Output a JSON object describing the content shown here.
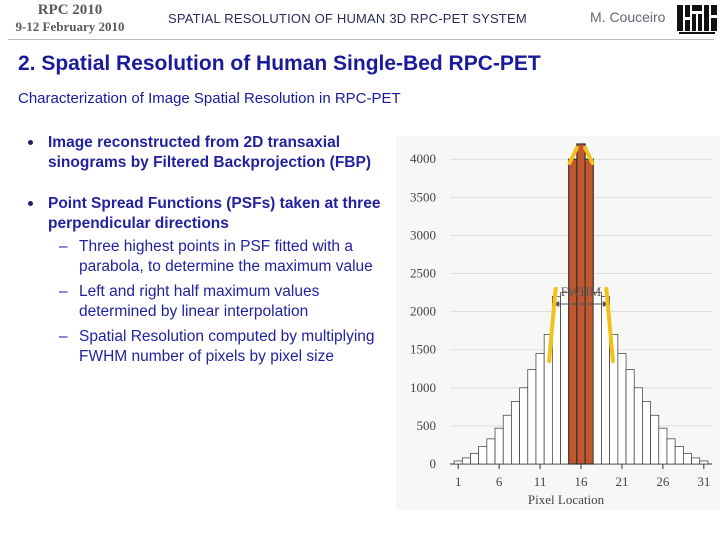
{
  "header": {
    "conference": "RPC 2010",
    "dates": "9-12 February 2010",
    "presentation_title": "SPATIAL RESOLUTION OF HUMAN 3D RPC-PET SYSTEM",
    "author": "M. Couceiro",
    "logo_icon": "institution-logo-icon"
  },
  "slide": {
    "title": "2. Spatial Resolution of Human Single-Bed RPC-PET",
    "subtitle": "Characterization of Image Spatial Resolution in RPC-PET",
    "bullets": [
      {
        "text": "Image reconstructed from 2D transaxial sinograms by Filtered Backprojection (FBP)",
        "subs": []
      },
      {
        "text": "Point Spread Functions (PSFs) taken at three perpendicular directions",
        "subs": [
          "Three highest points in PSF fitted with a parabola, to determine the maximum value",
          "Left and right half maximum values determined by linear interpolation",
          "Spatial Resolution computed by multiplying FWHM number of pixels by pixel size"
        ]
      }
    ]
  },
  "chart_data": {
    "type": "bar",
    "xlabel": "Pixel Location",
    "ylabel": "",
    "annotation": "FWHM",
    "x_ticks": [
      "1",
      "6",
      "11",
      "16",
      "21",
      "26",
      "31"
    ],
    "y_ticks": [
      "0",
      "500",
      "1000",
      "1500",
      "2000",
      "2500",
      "3000",
      "3500",
      "4000"
    ],
    "xlim": [
      0,
      32
    ],
    "ylim": [
      0,
      4200
    ],
    "categories": [
      1,
      2,
      3,
      4,
      5,
      6,
      7,
      8,
      9,
      10,
      11,
      12,
      13,
      14,
      15,
      16,
      17,
      18,
      19,
      20,
      21,
      22,
      23,
      24,
      25,
      26,
      27,
      28,
      29,
      30,
      31
    ],
    "values": [
      40,
      80,
      140,
      230,
      330,
      470,
      640,
      820,
      1000,
      1240,
      1450,
      1700,
      2200,
      2250,
      4000,
      4200,
      4000,
      2250,
      2200,
      1700,
      1450,
      1240,
      1000,
      820,
      640,
      470,
      330,
      230,
      140,
      80,
      40
    ],
    "highlighted_pixels": [
      15,
      16,
      17
    ],
    "colors": {
      "highlight": "#c0572f",
      "bar_outline": "#333333",
      "marker": "#f2c21b"
    }
  }
}
